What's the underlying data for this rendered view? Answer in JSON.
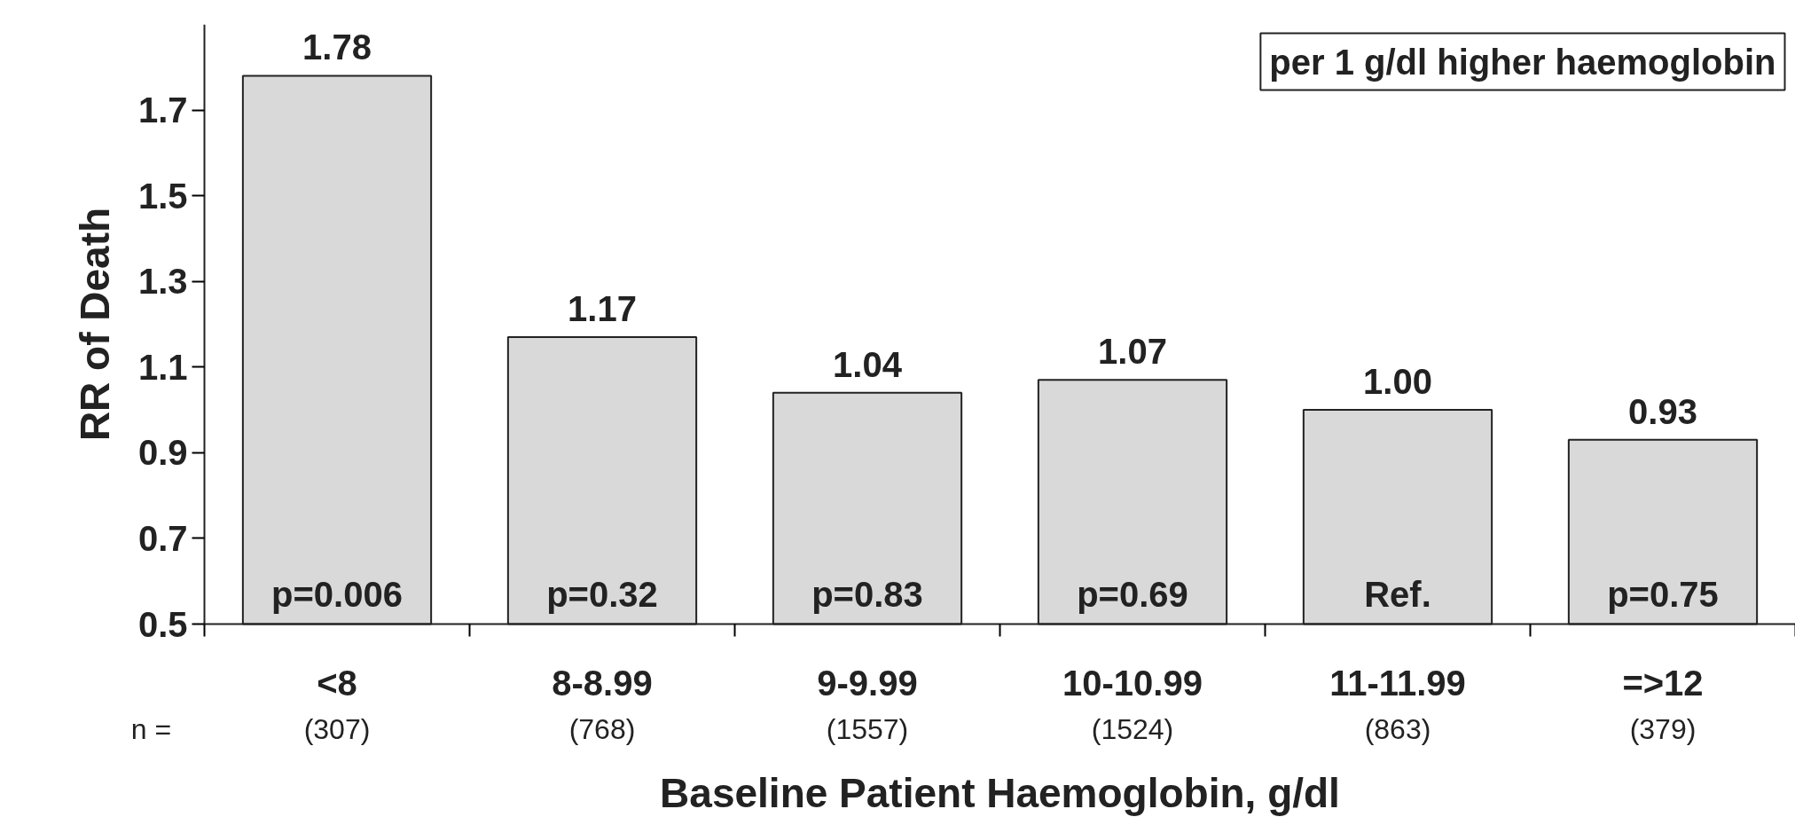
{
  "chart_data": {
    "type": "bar",
    "xlabel": "Baseline Patient Haemoglobin, g/dl",
    "ylabel": "RR of Death",
    "categories": [
      "<8",
      "8-8.99",
      "9-9.99",
      "10-10.99",
      "11-11.99",
      "=>12"
    ],
    "values": [
      1.78,
      1.17,
      1.04,
      1.07,
      1.0,
      0.93
    ],
    "value_labels": [
      "1.78",
      "1.17",
      "1.04",
      "1.07",
      "1.00",
      "0.93"
    ],
    "color": "#d9d9d9",
    "ylim": [
      0.5,
      1.9
    ],
    "yticks": [
      0.5,
      0.7,
      0.9,
      1.1,
      1.3,
      1.5,
      1.7
    ],
    "grid": false,
    "annotations": [
      "per 1 g/dl higher haemoglobin",
      "n =",
      "(307)",
      "(768)",
      "(1557)",
      "(1524)",
      "(863)",
      "(379)",
      "p=0.006",
      "p=0.32",
      "p=0.83",
      "p=0.69",
      "Ref.",
      "p=0.75"
    ]
  }
}
